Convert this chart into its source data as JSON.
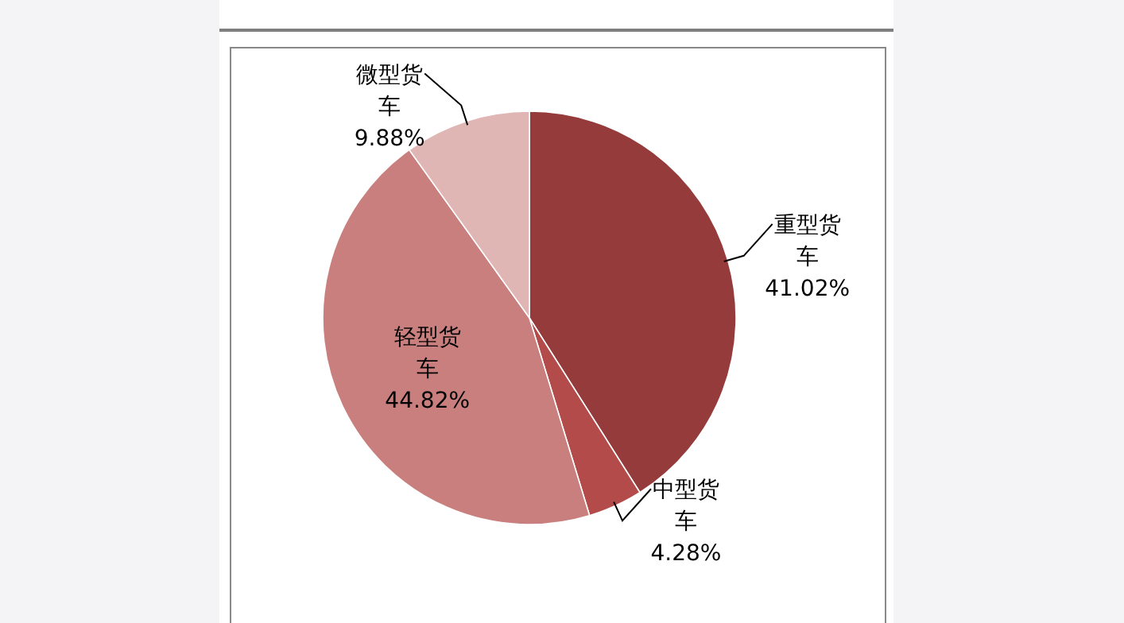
{
  "chart_data": {
    "type": "pie",
    "categories": [
      "重型货车",
      "中型货车",
      "轻型货车",
      "微型货车"
    ],
    "values": [
      41.02,
      4.28,
      44.82,
      9.88
    ],
    "colors": [
      "#963b3b",
      "#b24b49",
      "#c87f7d",
      "#e0b6b5"
    ],
    "value_labels": [
      "41.02%",
      "4.28%",
      "44.82%",
      "9.88%"
    ]
  }
}
